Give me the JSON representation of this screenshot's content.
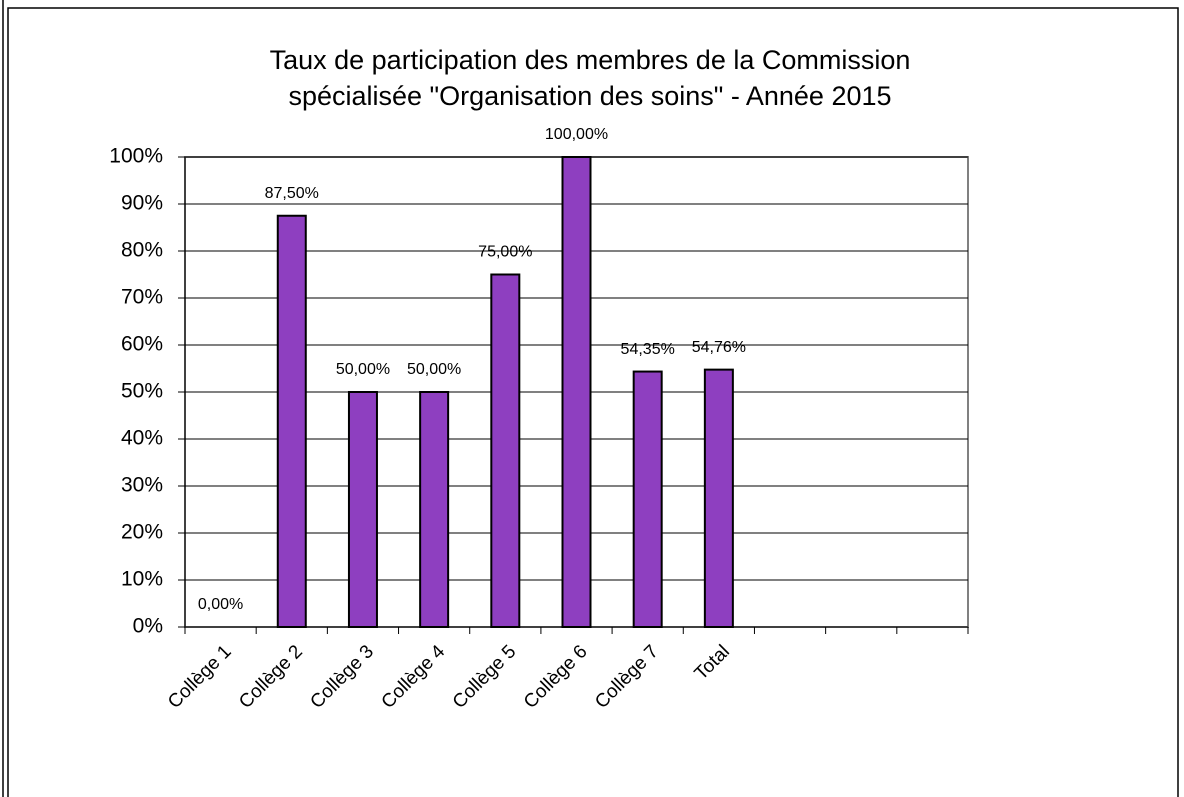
{
  "chart_data": {
    "type": "bar",
    "title": [
      "Taux de participation des membres de la Commission",
      "spécialisée \"Organisation des soins\"  -  Année 2015"
    ],
    "categories": [
      "Collège 1",
      "Collège 2",
      "Collège 3",
      "Collège 4",
      "Collège 5",
      "Collège 6",
      "Collège 7",
      "Total",
      null,
      null,
      null
    ],
    "values": [
      0,
      87.5,
      50,
      50,
      75,
      100,
      54.35,
      54.76,
      null,
      null,
      null
    ],
    "value_labels": [
      "0,00%",
      "87,50%",
      "50,00%",
      "50,00%",
      "75,00%",
      "100,00%",
      "54,35%",
      "54,76%",
      null,
      null,
      null
    ],
    "color": "#8e3fc0",
    "ylim": [
      0,
      100
    ],
    "yticks": [
      {
        "value": 0,
        "label": "0%"
      },
      {
        "value": 10,
        "label": "10%"
      },
      {
        "value": 20,
        "label": "20%"
      },
      {
        "value": 30,
        "label": "30%"
      },
      {
        "value": 40,
        "label": "40%"
      },
      {
        "value": 50,
        "label": "50%"
      },
      {
        "value": 60,
        "label": "60%"
      },
      {
        "value": 70,
        "label": "70%"
      },
      {
        "value": 80,
        "label": "80%"
      },
      {
        "value": 90,
        "label": "90%"
      },
      {
        "value": 100,
        "label": "100%"
      }
    ],
    "grid": true
  }
}
